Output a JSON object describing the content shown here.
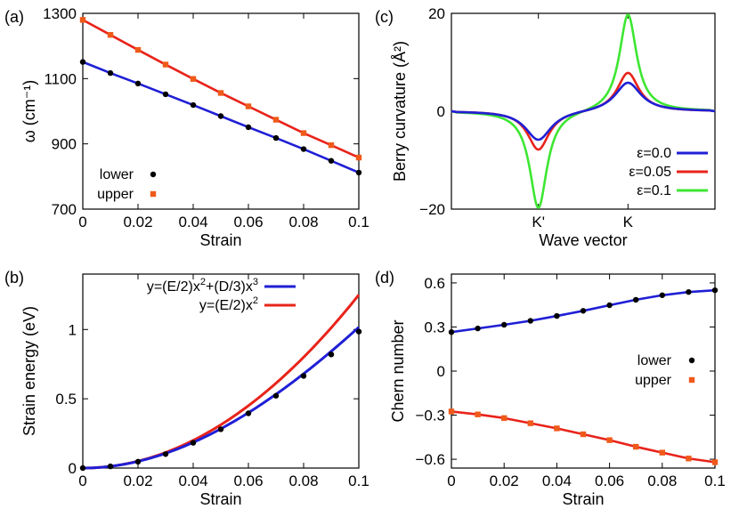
{
  "chart_data": [
    {
      "panel_label": "(a)",
      "type": "line",
      "xlabel": "Strain",
      "ylabel": "ω (cm⁻¹)",
      "xlim": [
        0,
        0.1
      ],
      "ylim": [
        700,
        1300
      ],
      "xticks": [
        "0",
        "0.02",
        "0.04",
        "0.06",
        "0.08",
        "0.1"
      ],
      "yticks": [
        "700",
        "900",
        "1100",
        "1300"
      ],
      "legend_position": "bottom-left",
      "x": [
        0,
        0.01,
        0.02,
        0.03,
        0.04,
        0.05,
        0.06,
        0.07,
        0.08,
        0.09,
        0.1
      ],
      "series": [
        {
          "name": "lower",
          "color": "#1f1fd6",
          "marker": "circle",
          "marker_color": "#000000",
          "values": [
            1151,
            1117,
            1085,
            1052,
            1019,
            985,
            951,
            918,
            884,
            848,
            812
          ]
        },
        {
          "name": "upper",
          "color": "#e8231a",
          "marker": "square",
          "marker_color": "#ef5a1a",
          "values": [
            1280,
            1234,
            1188,
            1143,
            1099,
            1056,
            1015,
            974,
            933,
            896,
            858
          ]
        }
      ]
    },
    {
      "panel_label": "(b)",
      "type": "line",
      "xlabel": "Strain",
      "ylabel": "Strain energy (eV)",
      "xlim": [
        0,
        0.1
      ],
      "ylim": [
        0,
        1.4
      ],
      "xticks": [
        "0",
        "0.02",
        "0.04",
        "0.06",
        "0.08",
        "0.1"
      ],
      "yticks": [
        "0",
        "0.5",
        "1"
      ],
      "legend_position": "top-left",
      "x": [
        0,
        0.01,
        0.02,
        0.03,
        0.04,
        0.05,
        0.06,
        0.07,
        0.08,
        0.09,
        0.1
      ],
      "points": [
        0.0,
        0.012,
        0.046,
        0.101,
        0.182,
        0.28,
        0.395,
        0.522,
        0.665,
        0.82,
        0.985
      ],
      "series": [
        {
          "name": "y=(E/2)x",
          "sup": "2",
          "name_mid": "+(D/3)x",
          "sup2": "3",
          "color": "#1f1fd6",
          "fit": "cubic",
          "E": 250,
          "D": -700
        },
        {
          "name": "y=(E/2)x",
          "sup": "2",
          "name_mid": "",
          "sup2": "",
          "color": "#e8231a",
          "fit": "quadratic",
          "E": 250,
          "D": 0
        }
      ]
    },
    {
      "panel_label": "(c)",
      "type": "line",
      "xlabel": "Wave vector",
      "ylabel": "Berry curvature (Å²)",
      "ylim": [
        -20,
        20
      ],
      "xticks": [
        "K'",
        "K"
      ],
      "yticks": [
        "−20",
        "0",
        "20"
      ],
      "legend_position": "bottom-right",
      "series": [
        {
          "name": "ε=0.0",
          "color": "#1f1fd6",
          "amp_k": 6,
          "amp_kp": -6,
          "width": 0.06
        },
        {
          "name": "ε=0.05",
          "color": "#e8231a",
          "amp_k": 8,
          "amp_kp": -8,
          "width": 0.05
        },
        {
          "name": "ε=0.1",
          "color": "#3ee632",
          "amp_k": 20,
          "amp_kp": -20,
          "width": 0.04
        }
      ]
    },
    {
      "panel_label": "(d)",
      "type": "line",
      "xlabel": "Strain",
      "ylabel": "Chern number",
      "xlim": [
        0,
        0.1
      ],
      "ylim": [
        -0.66,
        0.66
      ],
      "xticks": [
        "0",
        "0.02",
        "0.04",
        "0.06",
        "0.08",
        "0.1"
      ],
      "yticks": [
        "−0.6",
        "−0.3",
        "0",
        "0.3",
        "0.6"
      ],
      "legend_position": "center-right",
      "x": [
        0,
        0.01,
        0.02,
        0.03,
        0.04,
        0.05,
        0.06,
        0.07,
        0.08,
        0.09,
        0.1
      ],
      "series": [
        {
          "name": "lower",
          "color": "#1f1fd6",
          "marker": "circle",
          "marker_color": "#000000",
          "values": [
            0.265,
            0.29,
            0.315,
            0.342,
            0.375,
            0.41,
            0.448,
            0.485,
            0.516,
            0.538,
            0.55
          ]
        },
        {
          "name": "upper",
          "color": "#e8231a",
          "marker": "square",
          "marker_color": "#ef5a1a",
          "values": [
            -0.275,
            -0.295,
            -0.32,
            -0.355,
            -0.39,
            -0.43,
            -0.47,
            -0.515,
            -0.555,
            -0.595,
            -0.62
          ]
        }
      ]
    }
  ]
}
